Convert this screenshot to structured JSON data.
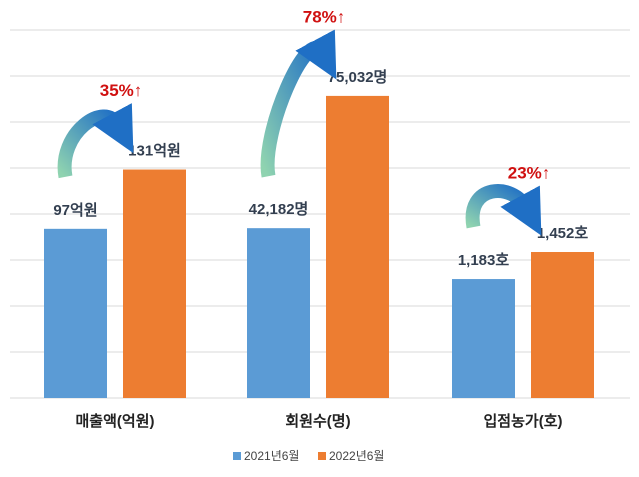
{
  "chart_data": {
    "type": "grouped-bar",
    "series": [
      {
        "name": "2021년6월",
        "color": "#5b9bd5"
      },
      {
        "name": "2022년6월",
        "color": "#ed7d31"
      }
    ],
    "groups": [
      {
        "category": "매출액(억원)",
        "values": [
          97,
          131
        ],
        "value_labels": [
          "97억원",
          "131억원"
        ],
        "annotation": "35%↑",
        "ylim": [
          0,
          211
        ]
      },
      {
        "category": "회원수(명)",
        "values": [
          42182,
          75032
        ],
        "value_labels": [
          "42,182명",
          "75,032명"
        ],
        "annotation": "78%↑",
        "ylim": [
          0,
          91400
        ]
      },
      {
        "category": "입점농가(호)",
        "values": [
          1183,
          1452
        ],
        "value_labels": [
          "1,183호",
          "1,452호"
        ],
        "annotation": "23%↑",
        "ylim": [
          0,
          3660
        ]
      }
    ],
    "grid": true
  }
}
